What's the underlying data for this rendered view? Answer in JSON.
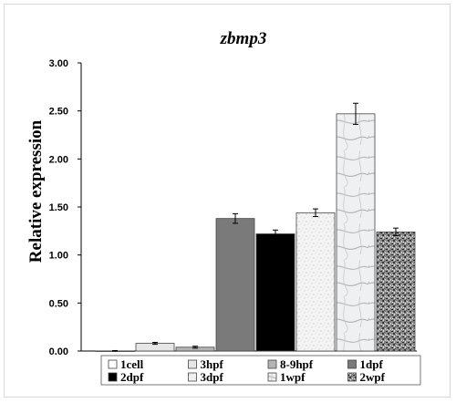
{
  "chart_data": {
    "type": "bar",
    "title": "zbmp3",
    "ylabel": "Relative expression",
    "xlabel": "",
    "ylim": [
      0,
      3.0
    ],
    "yticks": [
      "0.00",
      "0.50",
      "1.00",
      "1.50",
      "2.00",
      "2.50",
      "3.00"
    ],
    "categories": [
      "1cell",
      "3hpf",
      "8-9hpf",
      "1dpf",
      "2dpf",
      "3dpf",
      "1wpf",
      "2wpf"
    ],
    "values": [
      0.0,
      0.08,
      0.04,
      1.38,
      1.22,
      1.44,
      2.47,
      1.24
    ],
    "errors": [
      0.005,
      0.01,
      0.01,
      0.05,
      0.04,
      0.04,
      0.11,
      0.04
    ],
    "legend_placement": "bottom",
    "grid": false,
    "series_fills": [
      "#ffffff",
      "#e6e6e6",
      "#b4b4b4",
      "#7a7a7a",
      "#000000",
      "speckle-light",
      "marble",
      "speckle-dark"
    ]
  }
}
